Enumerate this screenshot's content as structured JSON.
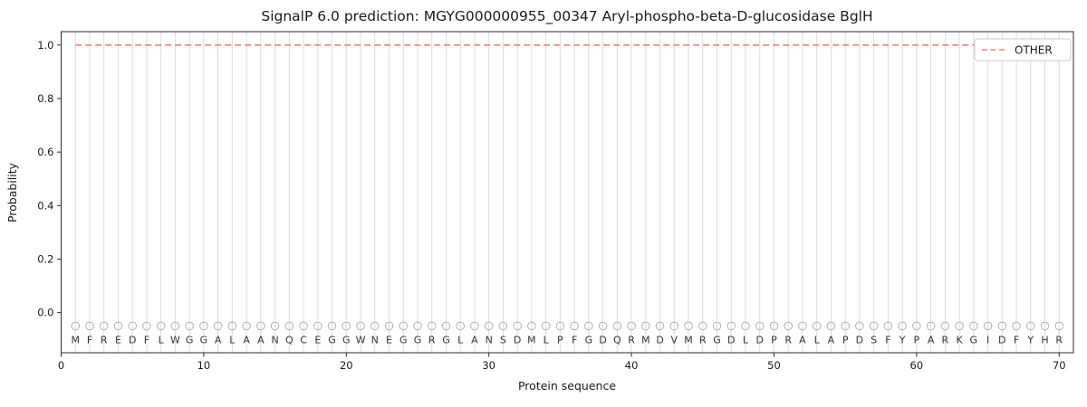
{
  "chart_data": {
    "type": "line",
    "title": "SignalP 6.0 prediction: MGYG000000955_00347 Aryl-phospho-beta-D-glucosidase BglH",
    "xlabel": "Protein sequence",
    "ylabel": "Probability",
    "xlim": [
      0,
      71
    ],
    "ylim": [
      -0.15,
      1.05
    ],
    "xticks": [
      0,
      10,
      20,
      30,
      40,
      50,
      60,
      70
    ],
    "yticks": [
      0.0,
      0.2,
      0.4,
      0.6,
      0.8,
      1.0
    ],
    "grid": "vertical-line-per-residue",
    "legend_position": "upper-right",
    "series": [
      {
        "name": "OTHER",
        "color": "#f47c7c",
        "style": "dashed",
        "x": [
          1,
          2,
          3,
          4,
          5,
          6,
          7,
          8,
          9,
          10,
          11,
          12,
          13,
          14,
          15,
          16,
          17,
          18,
          19,
          20,
          21,
          22,
          23,
          24,
          25,
          26,
          27,
          28,
          29,
          30,
          31,
          32,
          33,
          34,
          35,
          36,
          37,
          38,
          39,
          40,
          41,
          42,
          43,
          44,
          45,
          46,
          47,
          48,
          49,
          50,
          51,
          52,
          53,
          54,
          55,
          56,
          57,
          58,
          59,
          60,
          61,
          62,
          63,
          64,
          65,
          66,
          67,
          68,
          69,
          70
        ],
        "values": [
          1.0,
          1.0,
          1.0,
          1.0,
          1.0,
          1.0,
          1.0,
          1.0,
          1.0,
          1.0,
          1.0,
          1.0,
          1.0,
          1.0,
          1.0,
          1.0,
          1.0,
          1.0,
          1.0,
          1.0,
          1.0,
          1.0,
          1.0,
          1.0,
          1.0,
          1.0,
          1.0,
          1.0,
          1.0,
          1.0,
          1.0,
          1.0,
          1.0,
          1.0,
          1.0,
          1.0,
          1.0,
          1.0,
          1.0,
          1.0,
          1.0,
          1.0,
          1.0,
          1.0,
          1.0,
          1.0,
          1.0,
          1.0,
          1.0,
          1.0,
          1.0,
          1.0,
          1.0,
          1.0,
          1.0,
          1.0,
          1.0,
          1.0,
          1.0,
          1.0,
          1.0,
          1.0,
          1.0,
          1.0,
          1.0,
          1.0,
          1.0,
          1.0,
          1.0,
          1.0
        ]
      }
    ],
    "sequence": "MFREDFLWGGALAANQCEGGWNEGGRGLANSDMLPFGDQRMDVMRGDLDPRALAPDSFYPARKGIDFYHR",
    "residue_marker": {
      "shape": "open-circle",
      "y_value": -0.05,
      "color": "#b0b0b0"
    },
    "colors": {
      "grid": "#dcdcdc",
      "spine": "#2b2b2b",
      "tick_label": "#1a1a1a",
      "letter": "#333333",
      "legend_border": "#cccccc"
    }
  }
}
